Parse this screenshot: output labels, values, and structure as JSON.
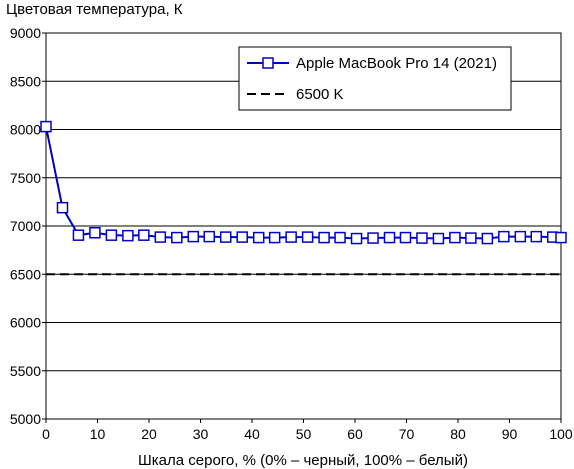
{
  "chart_data": {
    "type": "line",
    "title": "",
    "ylabel": "Цветовая температура, К",
    "xlabel": "Шкала серого, % (0% – черный, 100% – белый)",
    "xlim": [
      0,
      100
    ],
    "ylim": [
      5000,
      9000
    ],
    "x_ticks": [
      "0",
      "10",
      "20",
      "30",
      "40",
      "50",
      "60",
      "70",
      "80",
      "90",
      "100"
    ],
    "y_ticks": [
      "5000",
      "5500",
      "6000",
      "6500",
      "7000",
      "7500",
      "8000",
      "8500",
      "9000"
    ],
    "grid": "horizontal",
    "legend_position": "top-right",
    "series": [
      {
        "name": "Apple MacBook Pro 14 (2021)",
        "color": "#0000cc",
        "marker": "square",
        "x": [
          0,
          3.2,
          6.3,
          9.5,
          12.7,
          15.9,
          19,
          22.2,
          25.4,
          28.6,
          31.7,
          34.9,
          38.1,
          41.3,
          44.4,
          47.6,
          50.8,
          54,
          57.1,
          60.3,
          63.5,
          66.7,
          69.8,
          73,
          76.2,
          79.4,
          82.5,
          85.7,
          88.9,
          92.1,
          95.2,
          98.4,
          100
        ],
        "values": [
          8030,
          7190,
          6905,
          6930,
          6905,
          6900,
          6905,
          6885,
          6880,
          6890,
          6890,
          6885,
          6885,
          6880,
          6880,
          6885,
          6885,
          6880,
          6880,
          6870,
          6875,
          6880,
          6880,
          6875,
          6870,
          6880,
          6875,
          6870,
          6890,
          6890,
          6890,
          6885,
          6880
        ]
      },
      {
        "name": "6500 K",
        "color": "#000000",
        "style": "dashed",
        "x": [
          0,
          100
        ],
        "values": [
          6500,
          6500
        ]
      }
    ]
  }
}
